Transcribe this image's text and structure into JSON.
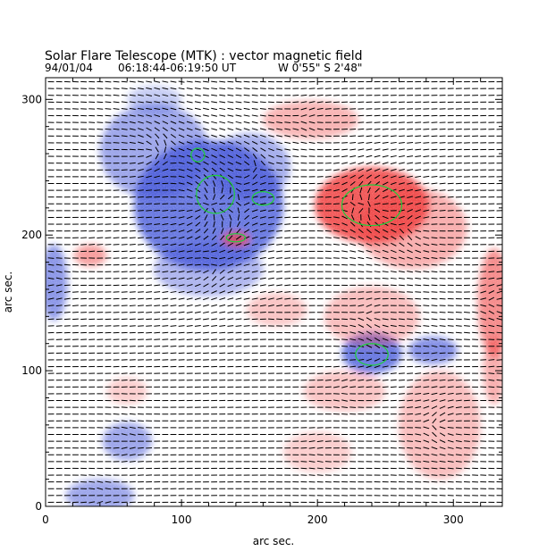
{
  "title": "Solar Flare Telescope (MTK) : vector magnetic field",
  "subtitle": {
    "date": "94/01/04",
    "time_range": "06:18:44-06:19:50 UT",
    "position": "W 0'55\"  S 2'48\""
  },
  "axes": {
    "xlabel": "arc sec.",
    "ylabel": "arc sec.",
    "x_ticks": [
      "0",
      "100",
      "200",
      "300"
    ],
    "y_ticks": [
      "0",
      "100",
      "200",
      "300"
    ],
    "xlim": [
      0,
      336
    ],
    "ylim": [
      0,
      316
    ]
  },
  "colors": {
    "negative_polarity": "#3b4fd6",
    "positive_polarity": "#ee3b3b",
    "contour": "#1fcf3a",
    "vectors": "#000000"
  },
  "field_regions": [
    {
      "polarity": "negative",
      "cx": 120,
      "cy": 222,
      "rx": 55,
      "ry": 48,
      "strength": 0.9
    },
    {
      "polarity": "negative",
      "cx": 80,
      "cy": 262,
      "rx": 40,
      "ry": 35,
      "strength": 0.6
    },
    {
      "polarity": "negative",
      "cx": 150,
      "cy": 250,
      "rx": 30,
      "ry": 25,
      "strength": 0.55
    },
    {
      "polarity": "negative",
      "cx": 120,
      "cy": 175,
      "rx": 40,
      "ry": 20,
      "strength": 0.5
    },
    {
      "polarity": "negative",
      "cx": 240,
      "cy": 113,
      "rx": 22,
      "ry": 15,
      "strength": 0.9
    },
    {
      "polarity": "negative",
      "cx": 285,
      "cy": 115,
      "rx": 18,
      "ry": 10,
      "strength": 0.75
    },
    {
      "polarity": "negative",
      "cx": 6,
      "cy": 165,
      "rx": 10,
      "ry": 28,
      "strength": 0.7
    },
    {
      "polarity": "negative",
      "cx": 60,
      "cy": 48,
      "rx": 18,
      "ry": 14,
      "strength": 0.6
    },
    {
      "polarity": "negative",
      "cx": 40,
      "cy": 8,
      "rx": 25,
      "ry": 12,
      "strength": 0.6
    },
    {
      "polarity": "negative",
      "cx": 80,
      "cy": 300,
      "rx": 20,
      "ry": 10,
      "strength": 0.35
    },
    {
      "polarity": "positive",
      "cx": 240,
      "cy": 222,
      "rx": 42,
      "ry": 28,
      "strength": 1.0
    },
    {
      "polarity": "positive",
      "cx": 270,
      "cy": 205,
      "rx": 40,
      "ry": 30,
      "strength": 0.5
    },
    {
      "polarity": "positive",
      "cx": 195,
      "cy": 285,
      "rx": 35,
      "ry": 14,
      "strength": 0.45
    },
    {
      "polarity": "positive",
      "cx": 330,
      "cy": 150,
      "rx": 12,
      "ry": 40,
      "strength": 0.7
    },
    {
      "polarity": "positive",
      "cx": 330,
      "cy": 100,
      "rx": 8,
      "ry": 25,
      "strength": 0.5
    },
    {
      "polarity": "positive",
      "cx": 140,
      "cy": 197,
      "rx": 10,
      "ry": 5,
      "strength": 0.9
    },
    {
      "polarity": "positive",
      "cx": 33,
      "cy": 185,
      "rx": 12,
      "ry": 8,
      "strength": 0.6
    },
    {
      "polarity": "positive",
      "cx": 240,
      "cy": 140,
      "rx": 35,
      "ry": 22,
      "strength": 0.4
    },
    {
      "polarity": "positive",
      "cx": 290,
      "cy": 60,
      "rx": 30,
      "ry": 40,
      "strength": 0.4
    },
    {
      "polarity": "positive",
      "cx": 220,
      "cy": 85,
      "rx": 30,
      "ry": 15,
      "strength": 0.35
    },
    {
      "polarity": "positive",
      "cx": 200,
      "cy": 40,
      "rx": 25,
      "ry": 15,
      "strength": 0.3
    },
    {
      "polarity": "positive",
      "cx": 170,
      "cy": 145,
      "rx": 22,
      "ry": 12,
      "strength": 0.35
    },
    {
      "polarity": "positive",
      "cx": 60,
      "cy": 85,
      "rx": 15,
      "ry": 10,
      "strength": 0.3
    }
  ],
  "contours": [
    {
      "cx": 125,
      "cy": 230,
      "rx": 14,
      "ry": 14
    },
    {
      "cx": 112,
      "cy": 259,
      "rx": 5,
      "ry": 5
    },
    {
      "cx": 160,
      "cy": 227,
      "rx": 8,
      "ry": 5
    },
    {
      "cx": 240,
      "cy": 222,
      "rx": 22,
      "ry": 15
    },
    {
      "cx": 240,
      "cy": 112,
      "rx": 12,
      "ry": 8
    },
    {
      "cx": 140,
      "cy": 198,
      "rx": 7,
      "ry": 3
    }
  ]
}
